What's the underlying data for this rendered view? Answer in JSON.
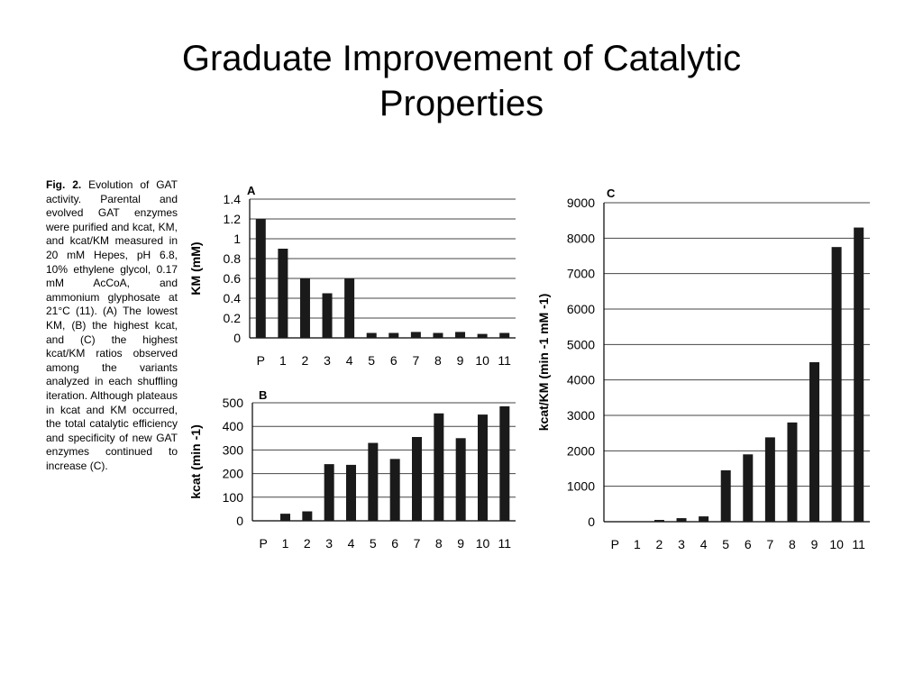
{
  "slide": {
    "title": "Graduate Improvement of Catalytic Properties"
  },
  "caption": {
    "label": "Fig. 2.",
    "text": "Evolution of GAT activity. Parental and evolved GAT enzymes were purified and kcat, KM, and kcat/KM measured in 20 mM Hepes, pH 6.8, 10% ethylene glycol, 0.17 mM AcCoA, and ammonium glyphosate at 21°C (11). (A) The lowest KM, (B) the highest kcat, and (C) the highest kcat/KM ratios observed among the variants analyzed in each shuffling iteration. Although plateaus in kcat and KM occurred, the total catalytic efficiency and specificity of new GAT enzymes continued to increase (C)."
  },
  "chart_data": [
    {
      "type": "bar",
      "panel": "A",
      "categories": [
        "P",
        "1",
        "2",
        "3",
        "4",
        "5",
        "6",
        "7",
        "8",
        "9",
        "10",
        "11"
      ],
      "values": [
        1.2,
        0.9,
        0.6,
        0.45,
        0.6,
        0.05,
        0.05,
        0.06,
        0.05,
        0.06,
        0.04,
        0.05
      ],
      "ylabel": "KM (mM)",
      "ylim": [
        0,
        1.4
      ],
      "yticks": [
        "0",
        "0.2",
        "0.4",
        "0.6",
        "0.8",
        "1",
        "1.2",
        "1.4"
      ],
      "grid": true
    },
    {
      "type": "bar",
      "panel": "B",
      "categories": [
        "P",
        "1",
        "2",
        "3",
        "4",
        "5",
        "6",
        "7",
        "8",
        "9",
        "10",
        "11"
      ],
      "values": [
        0,
        30,
        40,
        240,
        237,
        330,
        262,
        355,
        455,
        350,
        450,
        485
      ],
      "ylabel": "kcat (min -1)",
      "ylim": [
        0,
        500
      ],
      "yticks": [
        "0",
        "100",
        "200",
        "300",
        "400",
        "500"
      ],
      "grid": true
    },
    {
      "type": "bar",
      "panel": "C",
      "categories": [
        "P",
        "1",
        "2",
        "3",
        "4",
        "5",
        "6",
        "7",
        "8",
        "9",
        "10",
        "11"
      ],
      "values": [
        0,
        0,
        50,
        100,
        150,
        1450,
        1900,
        2380,
        2800,
        4500,
        7750,
        8300
      ],
      "ylabel": "kcat/KM (min -1 mM -1)",
      "ylim": [
        0,
        9000
      ],
      "yticks": [
        "0",
        "1000",
        "2000",
        "3000",
        "4000",
        "5000",
        "6000",
        "7000",
        "8000",
        "9000"
      ],
      "grid": true
    }
  ]
}
